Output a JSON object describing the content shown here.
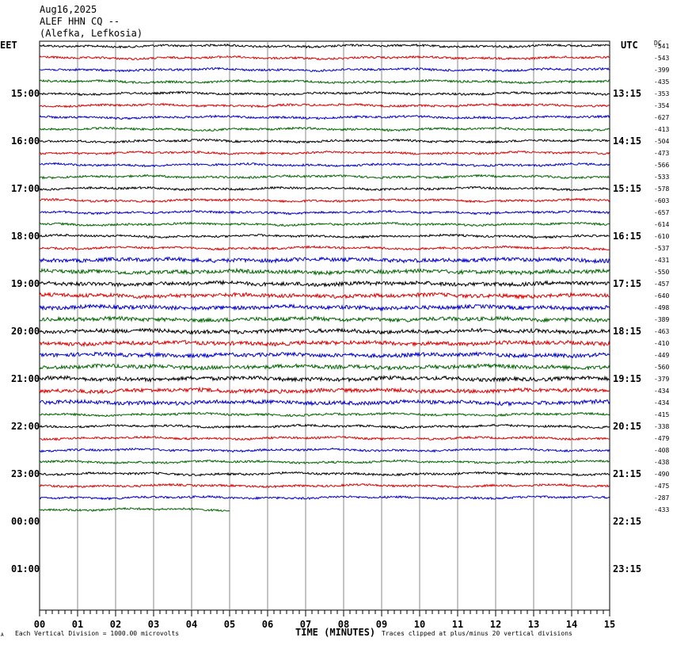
{
  "header": {
    "date": "Aug16,2025",
    "station": "ALEF HHN CQ --",
    "location": "(Alefka, Lefkosia)"
  },
  "left_tz": "EET",
  "right_tz": "UTC",
  "dc_label": "DC",
  "footer": {
    "left_mark": "A",
    "scale_note": "Each Vertical Division = 1000.00 microvolts",
    "xaxis_title": "TIME (MINUTES)",
    "clip_note": "Traces clipped at plus/minus 20 vertical divisions"
  },
  "chart_data": {
    "type": "line",
    "title": "ALEF HHN CQ --",
    "xlabel": "TIME (MINUTES)",
    "xlim": [
      0,
      15
    ],
    "x_ticks": [
      "00",
      "01",
      "02",
      "03",
      "04",
      "05",
      "06",
      "07",
      "08",
      "09",
      "10",
      "11",
      "12",
      "13",
      "14",
      "15"
    ],
    "left_hour_labels": [
      "15:00",
      "16:00",
      "17:00",
      "18:00",
      "19:00",
      "20:00",
      "21:00",
      "22:00",
      "23:00",
      "00:00",
      "01:00"
    ],
    "right_hour_labels": [
      "13:15",
      "14:15",
      "15:15",
      "16:15",
      "17:15",
      "18:15",
      "19:15",
      "20:15",
      "21:15",
      "22:15",
      "23:15"
    ],
    "trace_colors": [
      "#000000",
      "#dd0000",
      "#0000cc",
      "#006600"
    ],
    "dc_offsets": [
      "-541",
      "-543",
      "-399",
      "-435",
      "-353",
      "-354",
      "-627",
      "-413",
      "-504",
      "-473",
      "-566",
      "-533",
      "-578",
      "-603",
      "-657",
      "-614",
      "-610",
      "-537",
      "-431",
      "-550",
      "-457",
      "-640",
      "-498",
      "-389",
      "-463",
      "-410",
      "-449",
      "-560",
      "-379",
      "-434",
      "-434",
      "-415",
      "-338",
      "-479",
      "-408",
      "-438",
      "-490",
      "-475",
      "-287",
      "-433"
    ],
    "trace_count": 40,
    "last_trace_minutes": 5
  }
}
